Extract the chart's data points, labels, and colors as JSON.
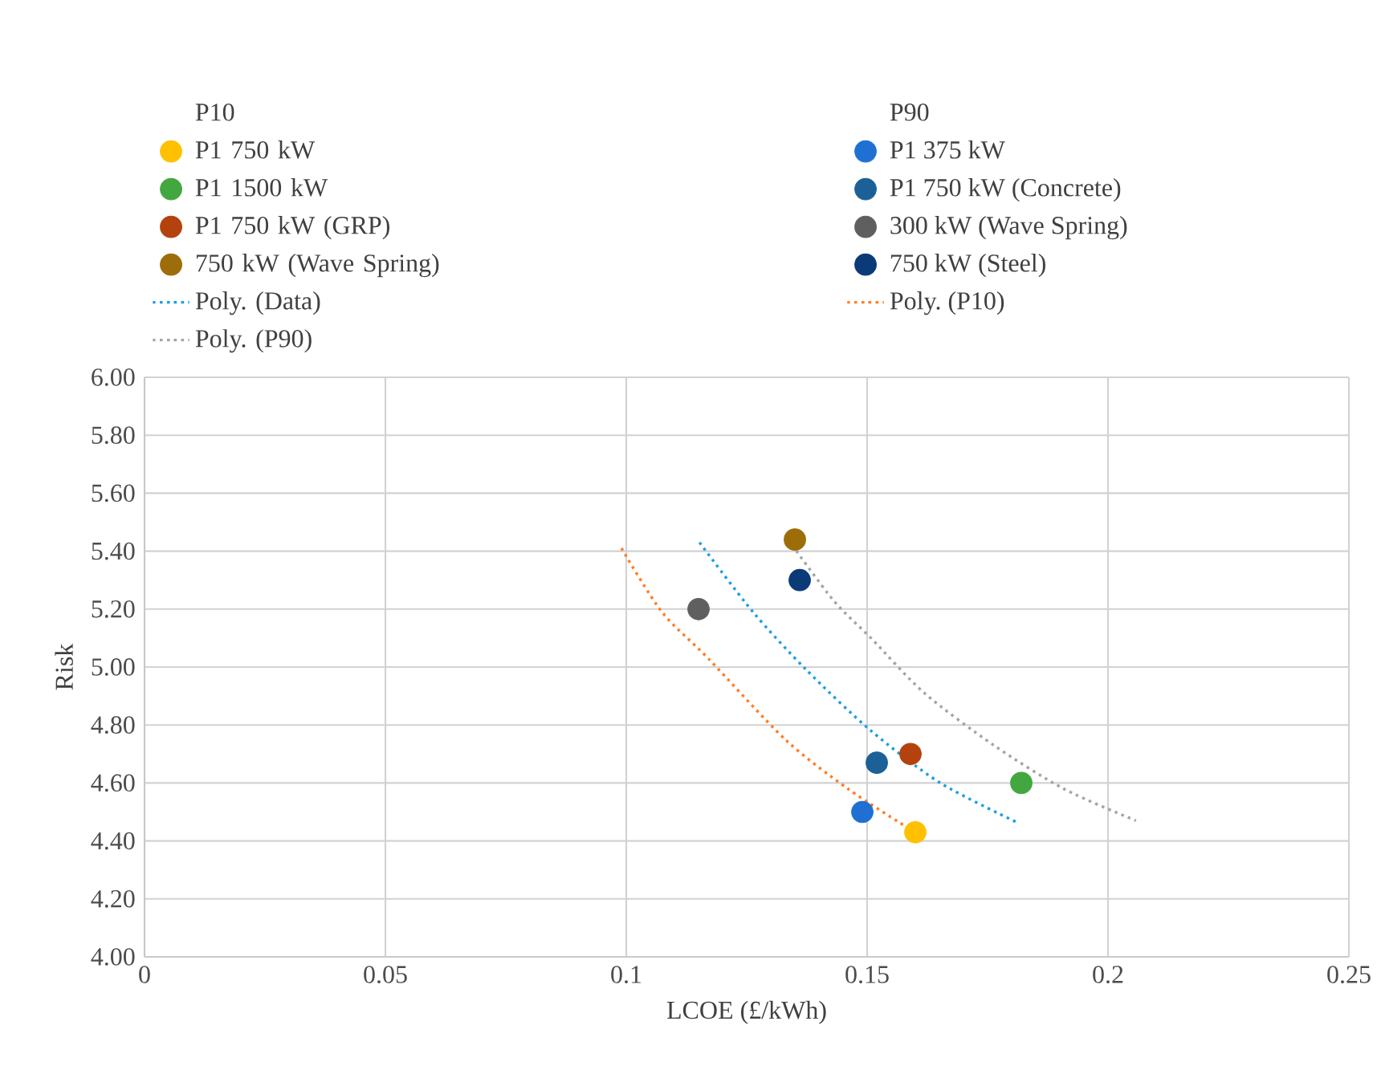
{
  "chart_data": {
    "type": "scatter",
    "xlabel": "LCOE (£/kWh)",
    "ylabel": "Risk",
    "annotations": [
      "P10",
      "P90"
    ],
    "xlim": [
      0,
      0.25
    ],
    "xticks": [
      0,
      0.05,
      0.1,
      0.15,
      0.2,
      0.25
    ],
    "ylim": [
      4.0,
      6.0
    ],
    "yticks": [
      {
        "value": 4.0,
        "label": "4.00"
      },
      {
        "value": 4.2,
        "label": "4.20"
      },
      {
        "value": 4.4,
        "label": "4.40"
      },
      {
        "value": 4.6,
        "label": "4.60"
      },
      {
        "value": 4.8,
        "label": "4.80"
      },
      {
        "value": 5.0,
        "label": "5.00"
      },
      {
        "value": 5.2,
        "label": "5.20"
      },
      {
        "value": 5.4,
        "label": "5.40"
      },
      {
        "value": 5.6,
        "label": "5.60"
      },
      {
        "value": 5.8,
        "label": "5.80"
      },
      {
        "value": 6.0,
        "label": "6.00"
      }
    ],
    "grid": true,
    "legend": "top",
    "marker": "circle",
    "series": [
      {
        "name": "P1 750 kW",
        "color": "#ffc000",
        "x": [
          0.16
        ],
        "values": [
          4.43
        ]
      },
      {
        "name": "P1 375 kW",
        "color": "#1f70d2",
        "x": [
          0.149
        ],
        "values": [
          4.5
        ]
      },
      {
        "name": "P1 1500 kW",
        "color": "#43a73f",
        "x": [
          0.182
        ],
        "values": [
          4.6
        ]
      },
      {
        "name": "P1 750 kW (Concrete)",
        "color": "#1b6096",
        "x": [
          0.152
        ],
        "values": [
          4.67
        ]
      },
      {
        "name": "P1 750 kW (GRP)",
        "color": "#b4420e",
        "x": [
          0.159
        ],
        "values": [
          4.7
        ]
      },
      {
        "name": "300 kW (Wave Spring)",
        "color": "#5f5f5f",
        "x": [
          0.115
        ],
        "values": [
          5.2
        ]
      },
      {
        "name": "750 kW (Wave Spring)",
        "color": "#9c6d08",
        "x": [
          0.135
        ],
        "values": [
          5.44
        ]
      },
      {
        "name": "750 kW (Steel)",
        "color": "#0b3a78",
        "x": [
          0.136
        ],
        "values": [
          5.3
        ]
      },
      {
        "name": "Poly. (Data)",
        "type": "line",
        "marker": "none",
        "line_style": "dotted",
        "color": "#1ea0e0",
        "x": [
          0.1152,
          0.1263,
          0.1374,
          0.1508,
          0.1652,
          0.1816
        ],
        "values": [
          5.43,
          5.19,
          4.99,
          4.78,
          4.6,
          4.46
        ]
      },
      {
        "name": "Poly. (P10)",
        "type": "line",
        "marker": "none",
        "line_style": "dotted",
        "color": "#ff7f27",
        "x": [
          0.099,
          0.1074,
          0.117,
          0.133,
          0.146,
          0.158
        ],
        "values": [
          5.41,
          5.19,
          5.03,
          4.75,
          4.58,
          4.45
        ]
      },
      {
        "name": "Poly. (P90)",
        "type": "line",
        "marker": "none",
        "line_style": "dotted",
        "color": "#a5a5a5",
        "x": [
          0.1336,
          0.143,
          0.1508,
          0.1619,
          0.1763,
          0.1908,
          0.2058
        ],
        "values": [
          5.44,
          5.23,
          5.1,
          4.91,
          4.73,
          4.58,
          4.47
        ]
      }
    ]
  }
}
